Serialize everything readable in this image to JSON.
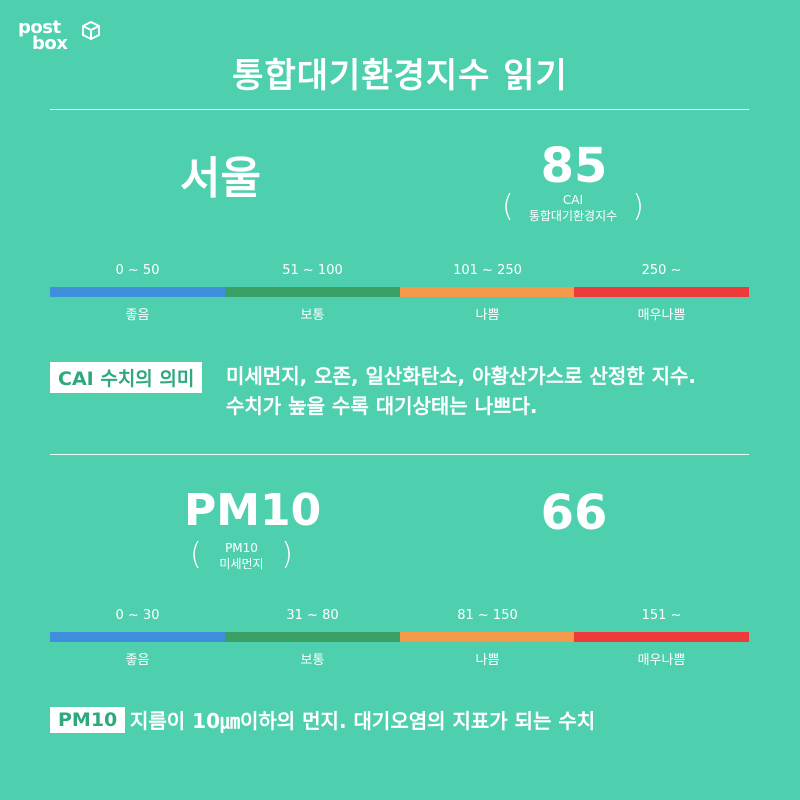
{
  "logo": {
    "line1": "post",
    "line2": "box"
  },
  "title": "통합대기환경지수 읽기",
  "cai": {
    "city": "서울",
    "value": "85",
    "label_line1": "CAI",
    "label_line2": "통합대기환경지수",
    "ranges": [
      "0 ~ 50",
      "51 ~ 100",
      "101 ~ 250",
      "250 ~"
    ],
    "grades": [
      "좋음",
      "보통",
      "나쁨",
      "매우나쁨"
    ],
    "tag": "CAI 수치의 의미",
    "desc_line1": "미세먼지, 오존, 일산화탄소, 아황산가스로 산정한 지수.",
    "desc_line2": "수치가 높을 수록 대기상태는 나쁘다."
  },
  "pm10": {
    "name": "PM10",
    "value": "66",
    "label_line1": "PM10",
    "label_line2": "미세먼지",
    "ranges": [
      "0 ~ 30",
      "31 ~ 80",
      "81 ~ 150",
      "151 ~"
    ],
    "grades": [
      "좋음",
      "보통",
      "나쁨",
      "매우나쁨"
    ],
    "tag": "PM10",
    "desc": "지름이 10㎛이하의 먼지. 대기오염의 지표가 되는 수치"
  },
  "colors": {
    "background": "#4ecfae",
    "good": "#3f8fdc",
    "normal": "#3aa066",
    "bad": "#f59a4a",
    "very_bad": "#ee3a3a"
  }
}
